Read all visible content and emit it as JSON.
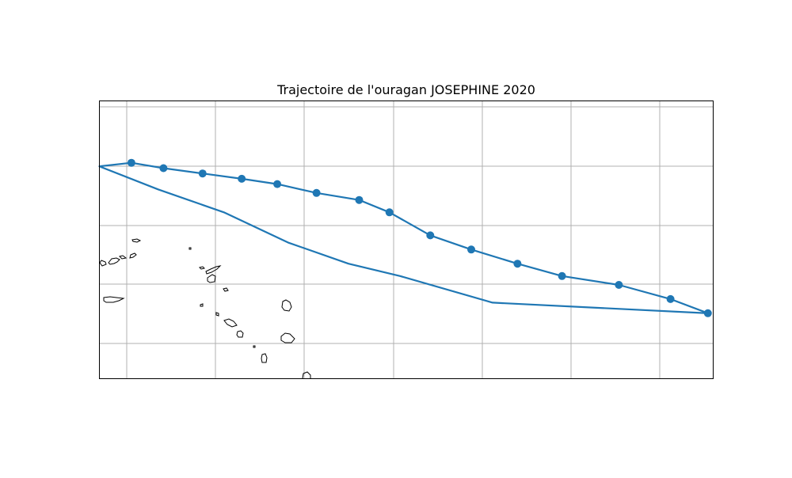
{
  "map": {
    "title": "Trajectoire de l'ouragan JOSEPHINE 2020",
    "track_color": "#1f77b4",
    "coastline_color": "#000000",
    "grid_color": "#b0b0b0",
    "grid": true
  },
  "chart_data": {
    "type": "line",
    "title": "Trajectoire de l'ouragan JOSEPHINE 2020",
    "xlabel": "",
    "ylabel": "",
    "xlim": [
      -72.1,
      -37.6
    ],
    "ylim": [
      12.1,
      27.8
    ],
    "grid": true,
    "series": [
      {
        "marker": "circle",
        "color": "#1f77b4",
        "x": [
          -37.9,
          -40.0,
          -42.9,
          -46.1,
          -48.6,
          -51.2,
          -53.5,
          -55.8,
          -57.5,
          -59.9,
          -62.1,
          -64.1,
          -66.3,
          -68.5,
          -70.3,
          -72.1,
          -68.8,
          -65.1,
          -61.5,
          -58.1,
          -55.2,
          -50.0,
          -37.9
        ],
        "y": [
          15.8,
          16.6,
          17.4,
          17.9,
          18.6,
          19.4,
          20.2,
          21.5,
          22.2,
          22.6,
          23.1,
          23.4,
          23.7,
          24.0,
          24.3,
          24.1,
          22.8,
          21.5,
          19.8,
          18.6,
          17.9,
          16.4,
          15.8
        ]
      }
    ],
    "points": [
      {
        "x": -37.9,
        "y": 15.8
      },
      {
        "x": -40.0,
        "y": 16.6
      },
      {
        "x": -42.9,
        "y": 17.4
      },
      {
        "x": -46.1,
        "y": 17.9
      },
      {
        "x": -48.6,
        "y": 18.6
      },
      {
        "x": -51.2,
        "y": 19.4
      },
      {
        "x": -53.5,
        "y": 20.2
      },
      {
        "x": -55.8,
        "y": 21.5
      },
      {
        "x": -57.5,
        "y": 22.2
      },
      {
        "x": -59.9,
        "y": 22.6
      },
      {
        "x": -62.1,
        "y": 23.1
      },
      {
        "x": -64.1,
        "y": 23.4
      },
      {
        "x": -66.3,
        "y": 23.7
      },
      {
        "x": -68.5,
        "y": 24.0
      },
      {
        "x": -70.3,
        "y": 24.3
      }
    ]
  }
}
